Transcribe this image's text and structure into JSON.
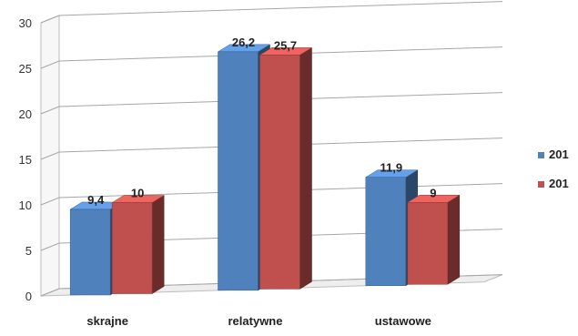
{
  "chart_data": {
    "type": "bar",
    "categories": [
      "skrajne",
      "relatywne",
      "ustawowe"
    ],
    "series": [
      {
        "name": "201",
        "values": [
          9.4,
          26.2,
          11.9
        ],
        "value_labels": [
          "9,4",
          "26,2",
          "11,9"
        ],
        "color": "#4f81bd"
      },
      {
        "name": "201",
        "values": [
          10,
          25.7,
          9
        ],
        "value_labels": [
          "10",
          "25,7",
          "9"
        ],
        "color": "#c0504d"
      }
    ],
    "ylim": [
      0,
      30
    ],
    "yticks": [
      0,
      5,
      10,
      15,
      20,
      25,
      30
    ],
    "grid": true,
    "three_d": true,
    "legend_position": "right"
  }
}
